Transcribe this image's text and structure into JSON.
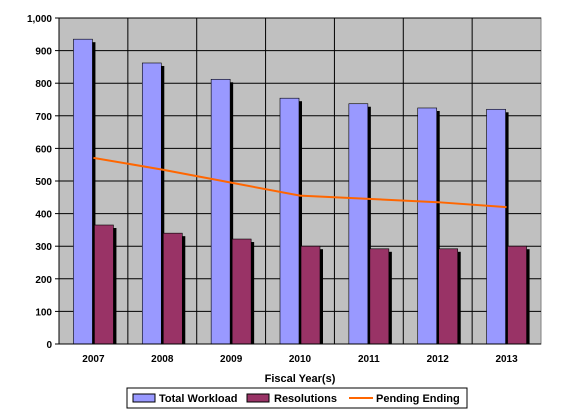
{
  "chart_data": {
    "type": "bar",
    "title": "",
    "xlabel": "Fiscal Year(s)",
    "ylabel": "",
    "ylim": [
      0,
      1000
    ],
    "yticks": [
      "0",
      "100",
      "200",
      "300",
      "400",
      "500",
      "600",
      "700",
      "800",
      "900",
      "1,000"
    ],
    "categories": [
      "2007",
      "2008",
      "2009",
      "2010",
      "2011",
      "2012",
      "2013"
    ],
    "series": [
      {
        "name": "Total Workload",
        "type": "bar",
        "color": "#9999ff",
        "values": [
          935,
          862,
          812,
          754,
          737,
          724,
          720
        ]
      },
      {
        "name": "Resolutions",
        "type": "bar",
        "color": "#993366",
        "values": [
          365,
          340,
          322,
          300,
          292,
          292,
          300
        ]
      },
      {
        "name": "Pending Ending",
        "type": "line",
        "color": "#ff6600",
        "values": [
          571,
          535,
          495,
          455,
          445,
          435,
          420
        ]
      }
    ],
    "grid": true,
    "plot_background": "#c0c0c0",
    "legend_position": "bottom"
  }
}
